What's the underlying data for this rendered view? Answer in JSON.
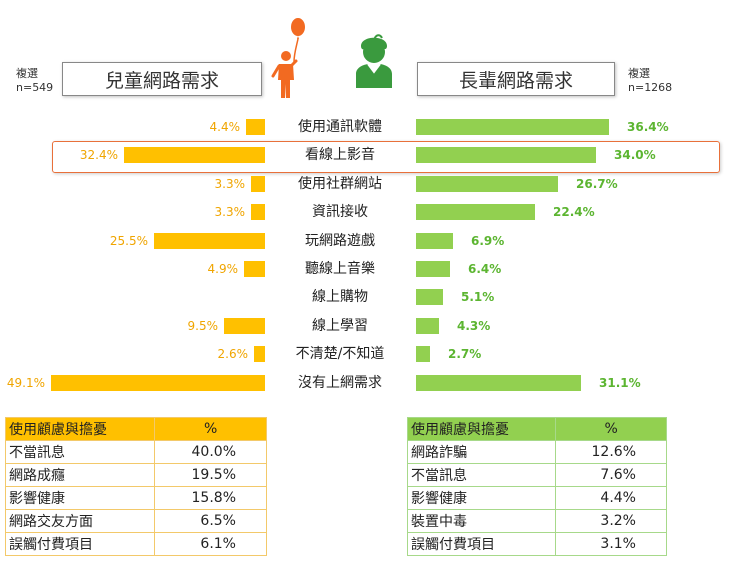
{
  "header": {
    "left_multi": "複選",
    "left_n": "n=549",
    "left_title": "兒童網路需求",
    "right_multi": "複選",
    "right_n": "n=1268",
    "right_title": "長輩網路需求"
  },
  "colors": {
    "children": "#ffc000",
    "elders": "#92d050",
    "child_text": "#f0a500",
    "elder_text": "#5cb531",
    "highlight": "#e8703a",
    "child_icon": "#f26a21",
    "elder_icon": "#3a9a3e"
  },
  "icons": {
    "left": "child-with-balloon-icon",
    "right": "elder-person-icon"
  },
  "chart_data": {
    "type": "bar",
    "categories": [
      "使用通訊軟體",
      "看線上影音",
      "使用社群網站",
      "資訊接收",
      "玩網路遊戲",
      "聽線上音樂",
      "線上購物",
      "線上學習",
      "不清楚/不知道",
      "沒有上網需求"
    ],
    "series": [
      {
        "name": "兒童網路需求",
        "values": [
          4.4,
          32.4,
          3.3,
          3.3,
          25.5,
          4.9,
          null,
          9.5,
          2.6,
          49.1
        ],
        "labels": [
          "4.4%",
          "32.4%",
          "3.3%",
          "3.3%",
          "25.5%",
          "4.9%",
          "",
          "9.5%",
          "2.6%",
          "49.1%"
        ]
      },
      {
        "name": "長輩網路需求",
        "values": [
          36.4,
          34.0,
          26.7,
          22.4,
          6.9,
          6.4,
          5.1,
          4.3,
          2.7,
          31.1
        ],
        "labels": [
          "36.4%",
          "34.0%",
          "26.7%",
          "22.4%",
          "6.9%",
          "6.4%",
          "5.1%",
          "4.3%",
          "2.7%",
          "31.1%"
        ]
      }
    ],
    "highlighted_category": "看線上影音"
  },
  "tables": {
    "left": {
      "header": [
        "使用顧慮與擔憂",
        "%"
      ],
      "rows": [
        [
          "不當訊息",
          "40.0%"
        ],
        [
          "網路成癮",
          "19.5%"
        ],
        [
          "影響健康",
          "15.8%"
        ],
        [
          "網路交友方面",
          "6.5%"
        ],
        [
          "誤觸付費項目",
          "6.1%"
        ]
      ]
    },
    "right": {
      "header": [
        "使用顧慮與擔憂",
        "%"
      ],
      "rows": [
        [
          "網路詐騙",
          "12.6%"
        ],
        [
          "不當訊息",
          "7.6%"
        ],
        [
          "影響健康",
          "4.4%"
        ],
        [
          "裝置中毒",
          "3.2%"
        ],
        [
          "誤觸付費項目",
          "3.1%"
        ]
      ]
    }
  }
}
